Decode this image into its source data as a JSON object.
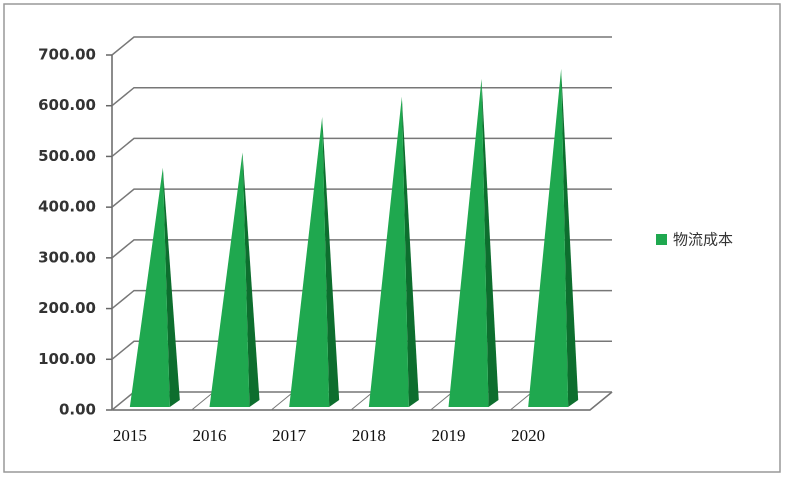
{
  "chart_data": {
    "type": "pyramid",
    "categories": [
      "2015",
      "2016",
      "2017",
      "2018",
      "2019",
      "2020"
    ],
    "series": [
      {
        "name": "物流成本",
        "color": "#1fa84f",
        "values": [
          460,
          490,
          560,
          600,
          635,
          655
        ]
      }
    ],
    "ylim": [
      0,
      700
    ],
    "yticks": [
      {
        "value": 0,
        "label": "0.00"
      },
      {
        "value": 100,
        "label": "100.00"
      },
      {
        "value": 200,
        "label": "200.00"
      },
      {
        "value": 300,
        "label": "300.00"
      },
      {
        "value": 400,
        "label": "400.00"
      },
      {
        "value": 500,
        "label": "500.00"
      },
      {
        "value": 600,
        "label": "600.00"
      },
      {
        "value": 700,
        "label": "700.00"
      }
    ],
    "grid": true,
    "legend": "right"
  }
}
